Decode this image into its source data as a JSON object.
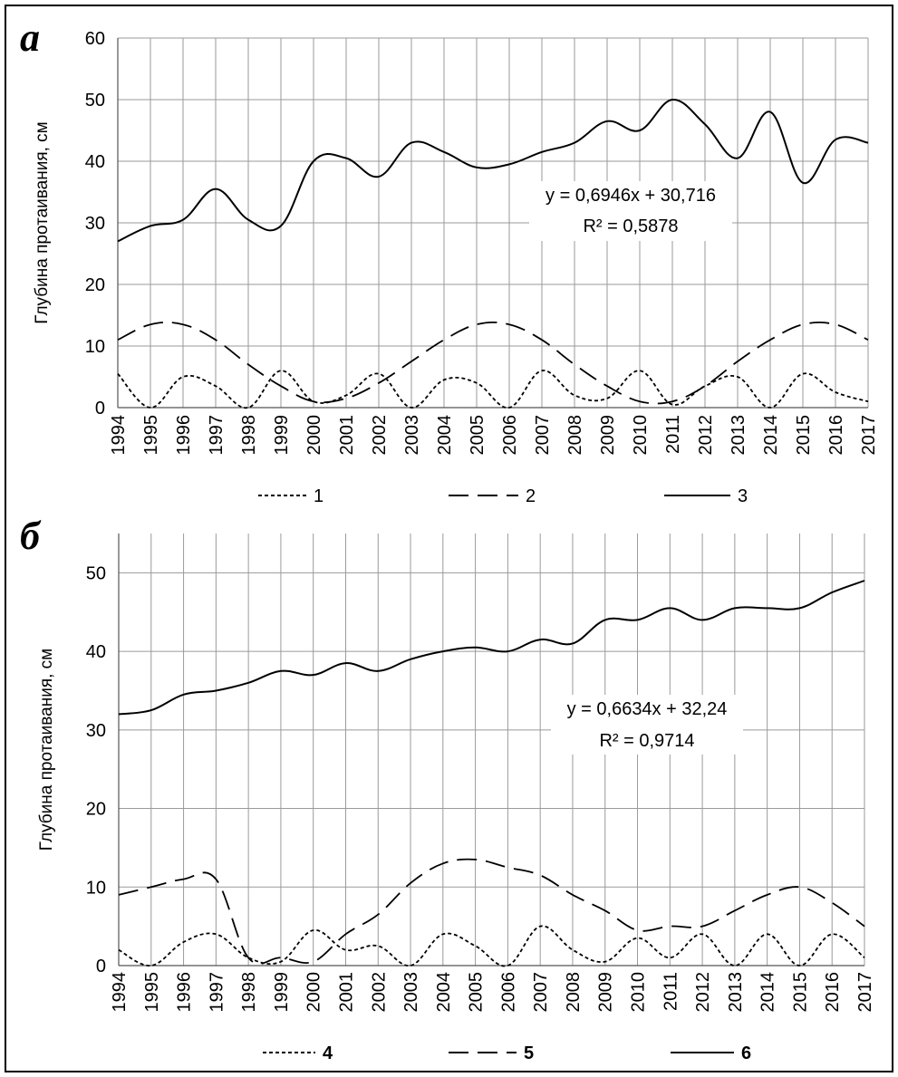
{
  "chart_data": [
    {
      "panel_label": "а",
      "type": "line",
      "ylabel": "Глубина протаивания, см",
      "ylim": [
        0,
        60
      ],
      "yticks": [
        0,
        10,
        20,
        30,
        40,
        50,
        60
      ],
      "x": [
        "1994",
        "1995",
        "1996",
        "1997",
        "1998",
        "1999",
        "2000",
        "2001",
        "2002",
        "2003",
        "2004",
        "2005",
        "2006",
        "2007",
        "2008",
        "2009",
        "2010",
        "2011",
        "2012",
        "2013",
        "2014",
        "2015",
        "2016",
        "2017"
      ],
      "grid": true,
      "legend_position": "bottom",
      "series": [
        {
          "name": "1",
          "style": "dotted",
          "values": [
            5.5,
            0,
            5,
            3.5,
            0,
            6,
            1,
            2,
            5.5,
            0,
            4.5,
            4,
            0,
            6,
            2,
            1.5,
            6,
            0.5,
            3.5,
            5,
            0,
            5.5,
            2.5,
            1
          ]
        },
        {
          "name": "2",
          "style": "dashed",
          "values": [
            11,
            13.5,
            13.5,
            11,
            7,
            3.5,
            1,
            1.5,
            4,
            7.5,
            11,
            13.5,
            13.5,
            11,
            7,
            3.5,
            1,
            1,
            3.5,
            7.5,
            11,
            13.5,
            13.5,
            11
          ]
        },
        {
          "name": "3",
          "style": "solid",
          "values": [
            27,
            29.5,
            30.5,
            35.5,
            30.5,
            29.5,
            40,
            40.5,
            37.5,
            43,
            41.5,
            39,
            39.5,
            41.5,
            43,
            46.5,
            45,
            50,
            46,
            40.5,
            48,
            36.5,
            43.5,
            43
          ]
        }
      ],
      "trendline": {
        "equation": "y = 0,6946x + 30,716",
        "r2": "R² = 0,5878"
      }
    },
    {
      "panel_label": "б",
      "type": "line",
      "ylabel": "Глубина протаивания, см",
      "ylim": [
        0,
        55
      ],
      "yticks": [
        0,
        10,
        20,
        30,
        40,
        50
      ],
      "x": [
        "1994",
        "1995",
        "1996",
        "1997",
        "1998",
        "1999",
        "2000",
        "2001",
        "2002",
        "2003",
        "2004",
        "2005",
        "2006",
        "2007",
        "2008",
        "2009",
        "2010",
        "2011",
        "2012",
        "2013",
        "2014",
        "2015",
        "2016",
        "2017"
      ],
      "grid": true,
      "legend_position": "bottom",
      "series": [
        {
          "name": "4",
          "style": "dotted",
          "values": [
            2,
            0,
            3,
            4,
            1,
            0.5,
            4.5,
            2,
            2.5,
            0,
            4,
            2.5,
            0,
            5,
            2,
            0.5,
            3.5,
            1,
            4,
            0,
            4,
            0,
            4,
            1
          ]
        },
        {
          "name": "5",
          "style": "dashed",
          "values": [
            9,
            10,
            11,
            11,
            1,
            1,
            0.5,
            4,
            6.5,
            10.5,
            13,
            13.5,
            12.5,
            11.5,
            9,
            7,
            4.5,
            5,
            5,
            7,
            9,
            10,
            8,
            5
          ]
        },
        {
          "name": "6",
          "style": "solid",
          "values": [
            32,
            32.5,
            34.5,
            35,
            36,
            37.5,
            37,
            38.5,
            37.5,
            39,
            40,
            40.5,
            40,
            41.5,
            41,
            44,
            44,
            45.5,
            44,
            45.5,
            45.5,
            45.5,
            47.5,
            49
          ]
        }
      ],
      "trendline": {
        "equation": "y = 0,6634x + 32,24",
        "r2": "R² = 0,9714"
      }
    }
  ]
}
